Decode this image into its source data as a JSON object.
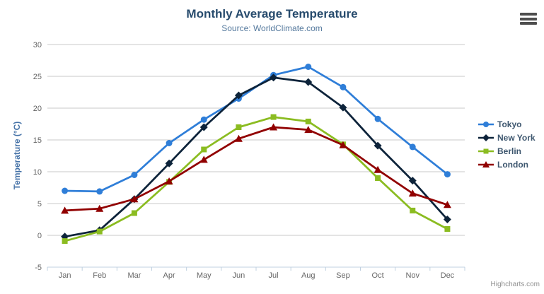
{
  "chart": {
    "title": "Monthly Average Temperature",
    "subtitle": "Source: WorldClimate.com",
    "credits": "Highcharts.com"
  },
  "icons": {
    "export_menu": "hamburger-icon"
  },
  "colors": {
    "title": "#274b6d",
    "subtitle": "#567a9e",
    "grid": "#C8C8C8",
    "axis_line": "#C0D0E0",
    "tick": "#C0D0E0",
    "axis_label": "#666666",
    "y_axis_title": "#4572A7",
    "legend_label": "#3E576F",
    "credits": "#909090",
    "menu_icon": "#4d4d4d"
  },
  "chart_data": {
    "type": "line",
    "title": "Monthly Average Temperature",
    "subtitle": "Source: WorldClimate.com",
    "xlabel": "",
    "ylabel": "Temperature (°C)",
    "ylim": [
      -5,
      30
    ],
    "y_tick_interval": 5,
    "y_tick_labels": [
      "-5",
      "0",
      "5",
      "10",
      "15",
      "20",
      "25",
      "30"
    ],
    "grid": true,
    "legend_position": "right",
    "categories": [
      "Jan",
      "Feb",
      "Mar",
      "Apr",
      "May",
      "Jun",
      "Jul",
      "Aug",
      "Sep",
      "Oct",
      "Nov",
      "Dec"
    ],
    "series": [
      {
        "name": "Tokyo",
        "color": "#2f7ed8",
        "marker": "circle",
        "values": [
          7.0,
          6.9,
          9.5,
          14.5,
          18.2,
          21.5,
          25.2,
          26.5,
          23.3,
          18.3,
          13.9,
          9.6
        ]
      },
      {
        "name": "New York",
        "color": "#0d233a",
        "marker": "diamond",
        "values": [
          -0.2,
          0.8,
          5.7,
          11.3,
          17.0,
          22.0,
          24.8,
          24.1,
          20.1,
          14.1,
          8.6,
          2.5
        ]
      },
      {
        "name": "Berlin",
        "color": "#8bbc21",
        "marker": "square",
        "values": [
          -0.9,
          0.6,
          3.5,
          8.4,
          13.5,
          17.0,
          18.6,
          17.9,
          14.3,
          9.0,
          3.9,
          1.0
        ]
      },
      {
        "name": "London",
        "color": "#910000",
        "marker": "triangle",
        "values": [
          3.9,
          4.2,
          5.7,
          8.5,
          11.9,
          15.2,
          17.0,
          16.6,
          14.2,
          10.3,
          6.6,
          4.8
        ]
      }
    ]
  }
}
